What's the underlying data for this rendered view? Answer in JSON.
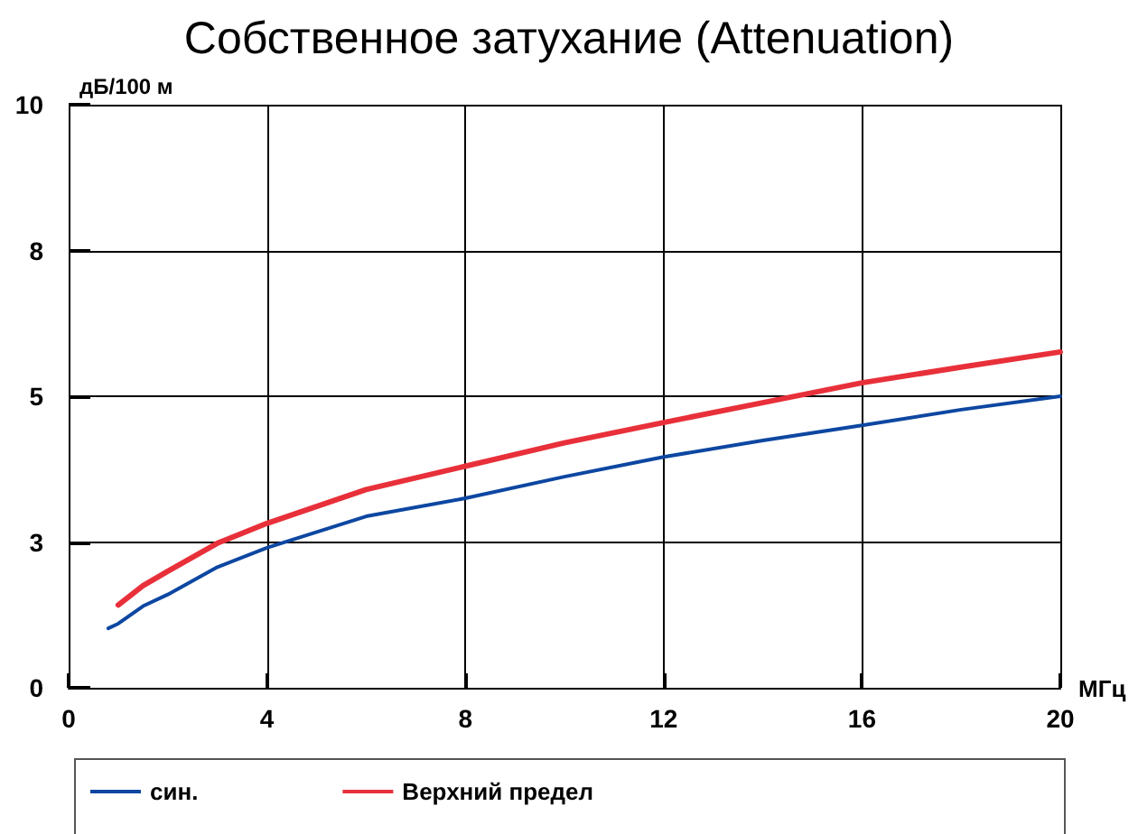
{
  "chart_data": {
    "type": "line",
    "title": "Собственное затухание (Attenuation)",
    "xlabel": "МГц",
    "ylabel": "дБ/100 м",
    "xlim": [
      0,
      20
    ],
    "xticks": [
      0,
      4,
      8,
      12,
      16,
      20
    ],
    "ylim": [
      0,
      10
    ],
    "yticks": [
      0,
      {
        "value": 2.5,
        "label": "3"
      },
      5,
      {
        "value": 7.5,
        "label": "8"
      },
      10
    ],
    "grid": true,
    "legend": "bottom",
    "marker": "none",
    "line_style": "solid",
    "series": [
      {
        "name": "син.",
        "color": "#0d47a1",
        "x": [
          0.8,
          1,
          1.5,
          2,
          3,
          4,
          6,
          8,
          10,
          12,
          14,
          16,
          18,
          20
        ],
        "values": [
          1.02,
          1.1,
          1.4,
          1.6,
          2.07,
          2.4,
          2.94,
          3.25,
          3.62,
          3.96,
          4.24,
          4.5,
          4.77,
          5.0
        ]
      },
      {
        "name": "Верхний предел",
        "color": "#e8303a",
        "x": [
          1,
          1.5,
          2,
          3,
          4,
          6,
          8,
          10,
          12,
          14,
          16,
          18,
          20
        ],
        "values": [
          1.42,
          1.75,
          2.0,
          2.48,
          2.82,
          3.4,
          3.8,
          4.2,
          4.55,
          4.89,
          5.23,
          5.5,
          5.76
        ]
      }
    ]
  }
}
